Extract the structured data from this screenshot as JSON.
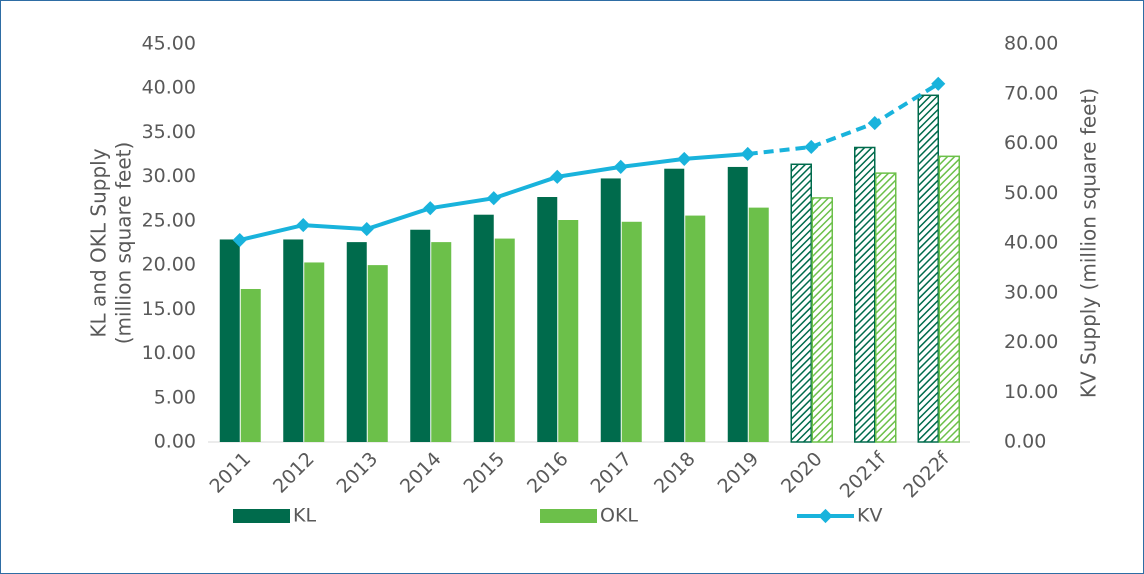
{
  "chart_data": {
    "type": "bar",
    "categories": [
      "2011",
      "2012",
      "2013",
      "2014",
      "2015",
      "2016",
      "2017",
      "2018",
      "2019",
      "2020",
      "2021f",
      "2022f"
    ],
    "hatched_categories": [
      "2020",
      "2021f",
      "2022f"
    ],
    "series": [
      {
        "name": "KL",
        "type": "bar",
        "color": "#006b4c",
        "values": [
          22.9,
          22.9,
          22.6,
          24.0,
          25.7,
          27.7,
          29.8,
          30.9,
          31.1,
          31.4,
          33.3,
          39.2
        ]
      },
      {
        "name": "OKL",
        "type": "bar",
        "color": "#6cc04a",
        "values": [
          17.3,
          20.3,
          20.0,
          22.6,
          23.0,
          25.1,
          24.9,
          25.6,
          26.5,
          27.6,
          30.4,
          32.3
        ]
      },
      {
        "name": "KV",
        "type": "line",
        "axis": "y2",
        "color": "#19b3dc",
        "values": [
          40.6,
          43.6,
          42.8,
          47.0,
          49.0,
          53.3,
          55.3,
          56.9,
          57.9,
          59.3,
          64.1,
          72.0
        ]
      }
    ],
    "ylabel": [
      "KL and OKL Supply",
      "(million square feet)"
    ],
    "y2label": "KV Supply (million square feet)",
    "ylim": [
      0,
      45
    ],
    "yticks": [
      {
        "value": 0,
        "label": "0.00"
      },
      {
        "value": 5,
        "label": "5.00"
      },
      {
        "value": 10,
        "label": "10.00"
      },
      {
        "value": 15,
        "label": "15.00"
      },
      {
        "value": 20,
        "label": "20.00"
      },
      {
        "value": 25,
        "label": "25.00"
      },
      {
        "value": 30,
        "label": "30.00"
      },
      {
        "value": 35,
        "label": "35.00"
      },
      {
        "value": 40,
        "label": "40.00"
      },
      {
        "value": 45,
        "label": "45.00"
      }
    ],
    "y2lim": [
      0,
      80
    ],
    "y2ticks": [
      {
        "value": 0,
        "label": "0.00"
      },
      {
        "value": 10,
        "label": "10.00"
      },
      {
        "value": 20,
        "label": "20.00"
      },
      {
        "value": 30,
        "label": "30.00"
      },
      {
        "value": 40,
        "label": "40.00"
      },
      {
        "value": 50,
        "label": "50.00"
      },
      {
        "value": 60,
        "label": "60.00"
      },
      {
        "value": 70,
        "label": "70.00"
      },
      {
        "value": 80,
        "label": "80.00"
      }
    ],
    "legend": "bottom"
  }
}
